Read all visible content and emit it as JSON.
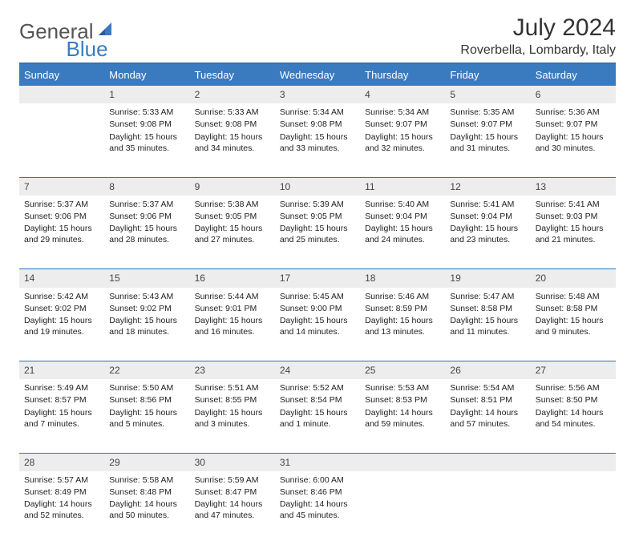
{
  "header": {
    "logo_gray": "General",
    "logo_blue": "Blue",
    "month_title": "July 2024",
    "location": "Roverbella, Lombardy, Italy"
  },
  "dayheader": {
    "bg": "#3a7bbf",
    "fg": "#ffffff",
    "labels": [
      "Sunday",
      "Monday",
      "Tuesday",
      "Wednesday",
      "Thursday",
      "Friday",
      "Saturday"
    ]
  },
  "colors": {
    "rule": "#2f73b5",
    "numrow_bg": "#ededed"
  },
  "weeks": [
    [
      {
        "n": "",
        "sunrise": "",
        "sunset": "",
        "daylight": ""
      },
      {
        "n": "1",
        "sunrise": "Sunrise: 5:33 AM",
        "sunset": "Sunset: 9:08 PM",
        "daylight": "Daylight: 15 hours and 35 minutes."
      },
      {
        "n": "2",
        "sunrise": "Sunrise: 5:33 AM",
        "sunset": "Sunset: 9:08 PM",
        "daylight": "Daylight: 15 hours and 34 minutes."
      },
      {
        "n": "3",
        "sunrise": "Sunrise: 5:34 AM",
        "sunset": "Sunset: 9:08 PM",
        "daylight": "Daylight: 15 hours and 33 minutes."
      },
      {
        "n": "4",
        "sunrise": "Sunrise: 5:34 AM",
        "sunset": "Sunset: 9:07 PM",
        "daylight": "Daylight: 15 hours and 32 minutes."
      },
      {
        "n": "5",
        "sunrise": "Sunrise: 5:35 AM",
        "sunset": "Sunset: 9:07 PM",
        "daylight": "Daylight: 15 hours and 31 minutes."
      },
      {
        "n": "6",
        "sunrise": "Sunrise: 5:36 AM",
        "sunset": "Sunset: 9:07 PM",
        "daylight": "Daylight: 15 hours and 30 minutes."
      }
    ],
    [
      {
        "n": "7",
        "sunrise": "Sunrise: 5:37 AM",
        "sunset": "Sunset: 9:06 PM",
        "daylight": "Daylight: 15 hours and 29 minutes."
      },
      {
        "n": "8",
        "sunrise": "Sunrise: 5:37 AM",
        "sunset": "Sunset: 9:06 PM",
        "daylight": "Daylight: 15 hours and 28 minutes."
      },
      {
        "n": "9",
        "sunrise": "Sunrise: 5:38 AM",
        "sunset": "Sunset: 9:05 PM",
        "daylight": "Daylight: 15 hours and 27 minutes."
      },
      {
        "n": "10",
        "sunrise": "Sunrise: 5:39 AM",
        "sunset": "Sunset: 9:05 PM",
        "daylight": "Daylight: 15 hours and 25 minutes."
      },
      {
        "n": "11",
        "sunrise": "Sunrise: 5:40 AM",
        "sunset": "Sunset: 9:04 PM",
        "daylight": "Daylight: 15 hours and 24 minutes."
      },
      {
        "n": "12",
        "sunrise": "Sunrise: 5:41 AM",
        "sunset": "Sunset: 9:04 PM",
        "daylight": "Daylight: 15 hours and 23 minutes."
      },
      {
        "n": "13",
        "sunrise": "Sunrise: 5:41 AM",
        "sunset": "Sunset: 9:03 PM",
        "daylight": "Daylight: 15 hours and 21 minutes."
      }
    ],
    [
      {
        "n": "14",
        "sunrise": "Sunrise: 5:42 AM",
        "sunset": "Sunset: 9:02 PM",
        "daylight": "Daylight: 15 hours and 19 minutes."
      },
      {
        "n": "15",
        "sunrise": "Sunrise: 5:43 AM",
        "sunset": "Sunset: 9:02 PM",
        "daylight": "Daylight: 15 hours and 18 minutes."
      },
      {
        "n": "16",
        "sunrise": "Sunrise: 5:44 AM",
        "sunset": "Sunset: 9:01 PM",
        "daylight": "Daylight: 15 hours and 16 minutes."
      },
      {
        "n": "17",
        "sunrise": "Sunrise: 5:45 AM",
        "sunset": "Sunset: 9:00 PM",
        "daylight": "Daylight: 15 hours and 14 minutes."
      },
      {
        "n": "18",
        "sunrise": "Sunrise: 5:46 AM",
        "sunset": "Sunset: 8:59 PM",
        "daylight": "Daylight: 15 hours and 13 minutes."
      },
      {
        "n": "19",
        "sunrise": "Sunrise: 5:47 AM",
        "sunset": "Sunset: 8:58 PM",
        "daylight": "Daylight: 15 hours and 11 minutes."
      },
      {
        "n": "20",
        "sunrise": "Sunrise: 5:48 AM",
        "sunset": "Sunset: 8:58 PM",
        "daylight": "Daylight: 15 hours and 9 minutes."
      }
    ],
    [
      {
        "n": "21",
        "sunrise": "Sunrise: 5:49 AM",
        "sunset": "Sunset: 8:57 PM",
        "daylight": "Daylight: 15 hours and 7 minutes."
      },
      {
        "n": "22",
        "sunrise": "Sunrise: 5:50 AM",
        "sunset": "Sunset: 8:56 PM",
        "daylight": "Daylight: 15 hours and 5 minutes."
      },
      {
        "n": "23",
        "sunrise": "Sunrise: 5:51 AM",
        "sunset": "Sunset: 8:55 PM",
        "daylight": "Daylight: 15 hours and 3 minutes."
      },
      {
        "n": "24",
        "sunrise": "Sunrise: 5:52 AM",
        "sunset": "Sunset: 8:54 PM",
        "daylight": "Daylight: 15 hours and 1 minute."
      },
      {
        "n": "25",
        "sunrise": "Sunrise: 5:53 AM",
        "sunset": "Sunset: 8:53 PM",
        "daylight": "Daylight: 14 hours and 59 minutes."
      },
      {
        "n": "26",
        "sunrise": "Sunrise: 5:54 AM",
        "sunset": "Sunset: 8:51 PM",
        "daylight": "Daylight: 14 hours and 57 minutes."
      },
      {
        "n": "27",
        "sunrise": "Sunrise: 5:56 AM",
        "sunset": "Sunset: 8:50 PM",
        "daylight": "Daylight: 14 hours and 54 minutes."
      }
    ],
    [
      {
        "n": "28",
        "sunrise": "Sunrise: 5:57 AM",
        "sunset": "Sunset: 8:49 PM",
        "daylight": "Daylight: 14 hours and 52 minutes."
      },
      {
        "n": "29",
        "sunrise": "Sunrise: 5:58 AM",
        "sunset": "Sunset: 8:48 PM",
        "daylight": "Daylight: 14 hours and 50 minutes."
      },
      {
        "n": "30",
        "sunrise": "Sunrise: 5:59 AM",
        "sunset": "Sunset: 8:47 PM",
        "daylight": "Daylight: 14 hours and 47 minutes."
      },
      {
        "n": "31",
        "sunrise": "Sunrise: 6:00 AM",
        "sunset": "Sunset: 8:46 PM",
        "daylight": "Daylight: 14 hours and 45 minutes."
      },
      {
        "n": "",
        "sunrise": "",
        "sunset": "",
        "daylight": ""
      },
      {
        "n": "",
        "sunrise": "",
        "sunset": "",
        "daylight": ""
      },
      {
        "n": "",
        "sunrise": "",
        "sunset": "",
        "daylight": ""
      }
    ]
  ]
}
